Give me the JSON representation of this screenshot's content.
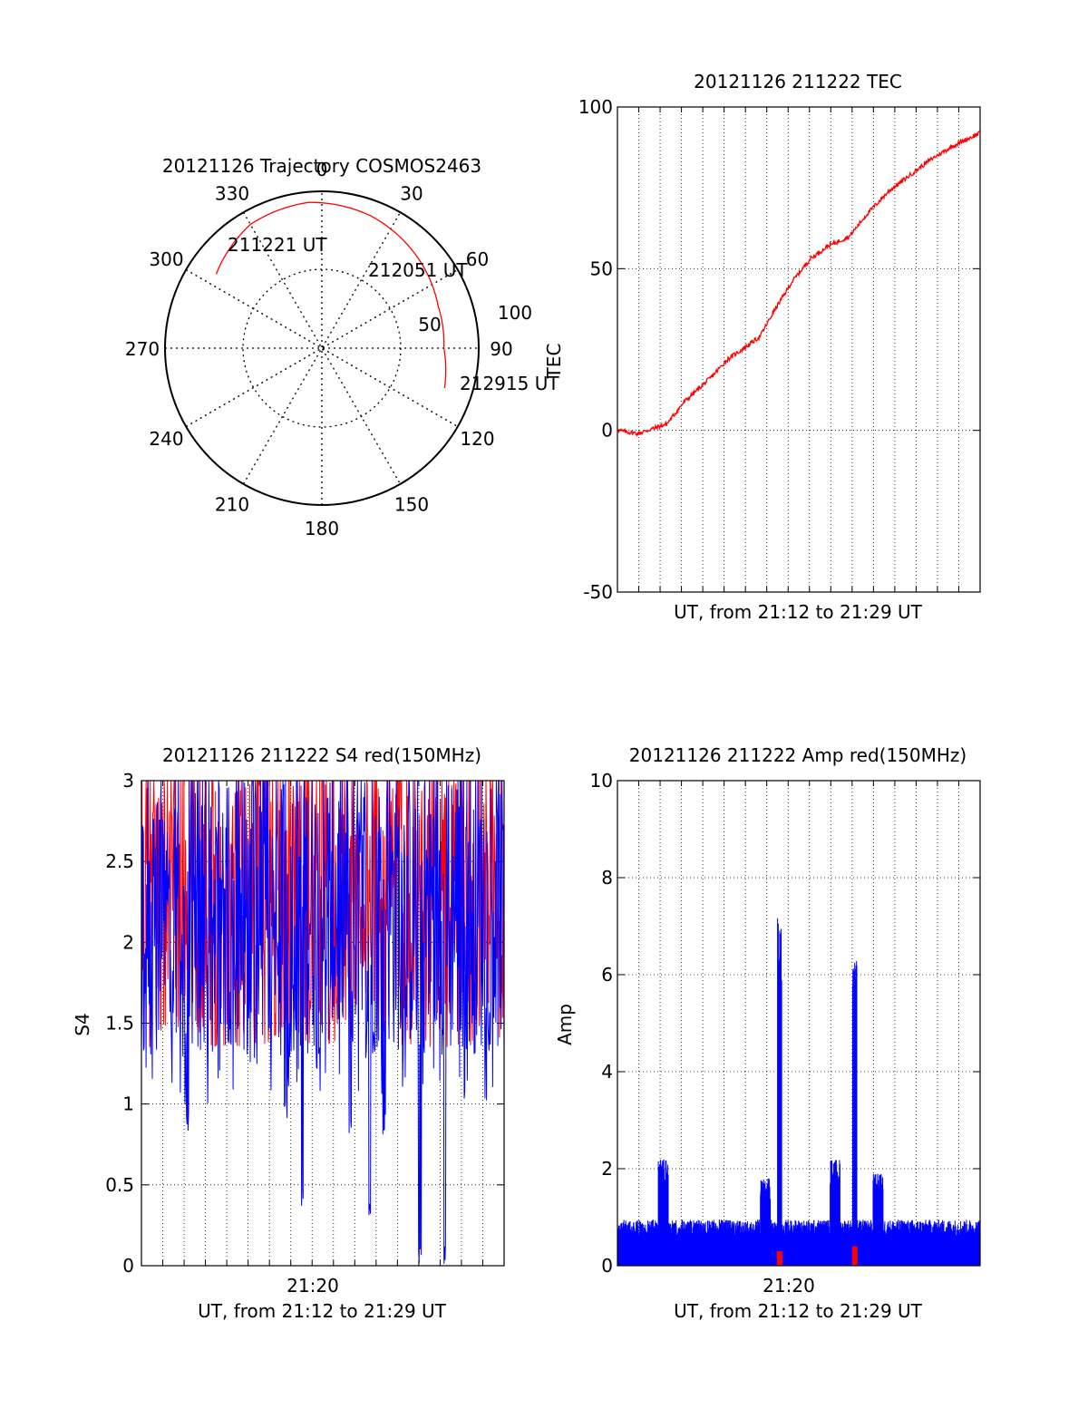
{
  "colors": {
    "red": "#ff0000",
    "blue": "#0000ff",
    "axis": "#000000",
    "grid": "#000000"
  },
  "chart_data": [
    {
      "type": "polar",
      "title": "20121126 Trajectory COSMOS2463",
      "azimuth_labels": [
        "0",
        "30",
        "60",
        "90",
        "120",
        "150",
        "180",
        "210",
        "240",
        "270",
        "300",
        "330"
      ],
      "radial_labels": [
        "50",
        "100"
      ],
      "trajectory": {
        "color": "red",
        "points": [
          {
            "az": 305,
            "el": 16
          },
          {
            "az": 330,
            "el": 8
          },
          {
            "az": 355,
            "el": 6
          },
          {
            "az": 20,
            "el": 9
          },
          {
            "az": 45,
            "el": 14
          },
          {
            "az": 70,
            "el": 19
          },
          {
            "az": 90,
            "el": 20
          },
          {
            "az": 108,
            "el": 16
          }
        ]
      },
      "annotations": [
        {
          "text": "211221 UT",
          "az": 345,
          "el": 15
        },
        {
          "text": "212051 UT",
          "az": 52,
          "el": 39
        },
        {
          "text": "212915 UT",
          "az": 108,
          "el": 14
        }
      ]
    },
    {
      "type": "line",
      "title": "20121126 211222 TEC",
      "xlabel": "UT, from 21:12 to 21:29 UT",
      "ylabel": "TEC",
      "ylim": [
        -50,
        100
      ],
      "yticks": [
        "-50",
        "0",
        "50",
        "100"
      ],
      "xlim": [
        "21:12:22",
        "21:29:15"
      ],
      "grid": true,
      "series": [
        {
          "color": "red",
          "x": [
            "21:12:22",
            "21:13:20",
            "21:14:40",
            "21:15:30",
            "21:16:40",
            "21:17:30",
            "21:18:10",
            "21:19:00",
            "21:19:40",
            "21:20:30",
            "21:21:20",
            "21:22:10",
            "21:23:10",
            "21:24:00",
            "21:25:00",
            "21:26:00",
            "21:27:00",
            "21:28:00",
            "21:29:15"
          ],
          "y": [
            0,
            -1,
            2,
            9,
            16,
            22,
            25,
            29,
            37,
            46,
            53,
            57,
            60,
            67,
            74,
            79,
            84,
            88,
            92
          ]
        }
      ]
    },
    {
      "type": "line",
      "title": "20121126 211222 S4 red(150MHz)",
      "xlabel": "UT, from 21:12 to 21:29 UT",
      "ylabel": "S4",
      "ylim": [
        0,
        3
      ],
      "yticks": [
        "0",
        "0.5",
        "1",
        "1.5",
        "2",
        "2.5",
        "3"
      ],
      "xtick_labels": [
        {
          "x": "21:20",
          "label": "21:20"
        }
      ],
      "xlim": [
        "21:12:22",
        "21:29:15"
      ],
      "grid": true,
      "series": [
        {
          "color": "red",
          "envelope": {
            "low": 1.35,
            "high": 3.0
          }
        },
        {
          "color": "blue",
          "envelope": {
            "low": 0.9,
            "high": 3.0
          },
          "dips": [
            {
              "x": "21:14:30",
              "y": 0.8
            },
            {
              "x": "21:19:05",
              "y": 0.9
            },
            {
              "x": "21:19:52",
              "y": 0.35
            },
            {
              "x": "21:22:05",
              "y": 0.8
            },
            {
              "x": "21:23:00",
              "y": 0.28
            },
            {
              "x": "21:23:40",
              "y": 0.8
            },
            {
              "x": "21:25:20",
              "y": 0.0
            },
            {
              "x": "21:26:30",
              "y": 0.0
            }
          ]
        }
      ]
    },
    {
      "type": "line",
      "title": "20121126 211222 Amp red(150MHz)",
      "xlabel": "UT, from 21:12 to 21:29 UT",
      "ylabel": "Amp",
      "ylim": [
        0,
        10
      ],
      "yticks": [
        "0",
        "2",
        "4",
        "6",
        "8",
        "10"
      ],
      "xtick_labels": [
        {
          "x": "21:20",
          "label": "21:20"
        }
      ],
      "xlim": [
        "21:12:22",
        "21:29:15"
      ],
      "grid": true,
      "series": [
        {
          "color": "blue",
          "baseline": 0.6,
          "bursts": [
            {
              "x": "21:14:30",
              "y": 2.2
            },
            {
              "x": "21:19:15",
              "y": 1.8
            },
            {
              "x": "21:19:55",
              "y": 7.4
            },
            {
              "x": "21:22:30",
              "y": 2.2
            },
            {
              "x": "21:23:25",
              "y": 6.3
            },
            {
              "x": "21:24:30",
              "y": 1.9
            }
          ]
        },
        {
          "color": "red",
          "spikes": [
            {
              "x": "21:19:55",
              "y": 0.3
            },
            {
              "x": "21:23:25",
              "y": 0.4
            }
          ]
        }
      ]
    }
  ]
}
